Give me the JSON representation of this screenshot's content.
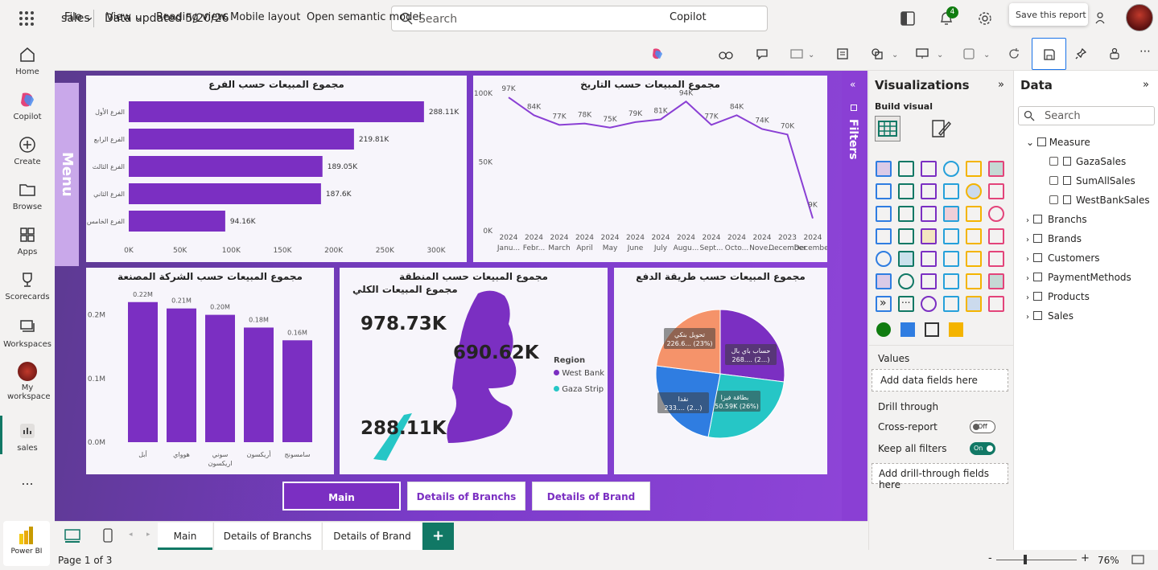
{
  "topbar": {
    "app_name": "sales",
    "data_updated": "Data updated 5/20/26",
    "search_placeholder": "Search",
    "notification_count": "4",
    "tooltip": "Save this report"
  },
  "leftnav": {
    "items": [
      {
        "label": "Home"
      },
      {
        "label": "Copilot"
      },
      {
        "label": "Create"
      },
      {
        "label": "Browse"
      },
      {
        "label": "Apps"
      },
      {
        "label": "Scorecards"
      },
      {
        "label": "Workspaces"
      },
      {
        "label": "My workspace"
      },
      {
        "label": "sales"
      }
    ],
    "more": "...",
    "brand": "Power BI"
  },
  "ribbon": {
    "file": "File",
    "view": "View",
    "reading_view": "Reading view",
    "mobile_layout": "Mobile layout",
    "open_model": "Open semantic model",
    "copilot": "Copilot"
  },
  "report": {
    "menu_label": "Menu",
    "nav_buttons": {
      "main": "Main",
      "branchs": "Details of Branchs",
      "brand": "Details of Brand"
    }
  },
  "chart_data": [
    {
      "type": "bar",
      "title": "مجموع المبيعات حسب الفرع",
      "categories": [
        "الفرع الأول",
        "الفرع الرابع",
        "الفرع الثالث",
        "الفرع الثاني",
        "الفرع الخامس"
      ],
      "values": [
        288.11,
        219.81,
        189.05,
        187.6,
        94.16
      ],
      "data_labels": [
        "288.11K",
        "219.81K",
        "189.05K",
        "187.6K",
        "94.16K"
      ],
      "xticks": [
        "0K",
        "50K",
        "100K",
        "150K",
        "200K",
        "250K",
        "300K"
      ],
      "xlim": [
        0,
        300
      ],
      "orientation": "horizontal",
      "color": "#7b2fc2"
    },
    {
      "type": "line",
      "title": "مجموع المبيعات حسب التاريخ",
      "x_years": [
        "2024",
        "2024",
        "2024",
        "2024",
        "2024",
        "2024",
        "2024",
        "2024",
        "2024",
        "2024",
        "2024",
        "2023",
        "2024"
      ],
      "x_months": [
        "Janu...",
        "Febr...",
        "March",
        "April",
        "May",
        "June",
        "July",
        "Augu...",
        "Sept...",
        "Octo...",
        "Nove...",
        "December",
        "December"
      ],
      "values": [
        97,
        84,
        77,
        78,
        75,
        79,
        81,
        94,
        77,
        84,
        74,
        70,
        9
      ],
      "data_labels": [
        "97K",
        "84K",
        "77K",
        "78K",
        "75K",
        "79K",
        "81K",
        "94K",
        "77K",
        "84K",
        "74K",
        "70K",
        "9K"
      ],
      "yticks": [
        "0K",
        "50K",
        "100K"
      ],
      "ylim": [
        0,
        100
      ],
      "color": "#8a3fd4"
    },
    {
      "type": "bar",
      "title": "مجموع المبيعات حسب الشركة المصنعة",
      "categories": [
        "أبل",
        "هوواي",
        "سوني اريكسون",
        "أريكسون",
        "سامسونج"
      ],
      "values": [
        0.22,
        0.21,
        0.2,
        0.18,
        0.16
      ],
      "data_labels": [
        "0.22M",
        "0.21M",
        "0.20M",
        "0.18M",
        "0.16M"
      ],
      "yticks": [
        "0.0M",
        "0.1M",
        "0.2M"
      ],
      "ylim": [
        0,
        0.25
      ],
      "color": "#7b2fc2"
    },
    {
      "type": "pie",
      "title": "مجموع المبيعات حسب طريقة الدفع",
      "slices": [
        {
          "label": "حساب باي بال",
          "value_label": "268.... (2...)",
          "percent": 27,
          "color": "#7b2fc2"
        },
        {
          "label": "بطاقة فيزا",
          "value_label": "250.59K (26%)",
          "percent": 26,
          "color": "#26c6c6"
        },
        {
          "label": "نقدا",
          "value_label": "233.... (2...)",
          "percent": 24,
          "color": "#2f7de1"
        },
        {
          "label": "تحويل بنكي",
          "value_label": "226.6... (23%)",
          "percent": 23,
          "color": "#f5936a"
        }
      ]
    }
  ],
  "map_card": {
    "title": "مجموع المبيعات حسب المنطقة",
    "total_title": "مجموع المبيعات الكلي",
    "total": "978.73K",
    "west_bank": "690.62K",
    "gaza": "288.11K",
    "legend_title": "Region",
    "legend": [
      {
        "name": "West Bank",
        "color": "#7b2fc2"
      },
      {
        "name": "Gaza Strip",
        "color": "#26c6c6"
      }
    ]
  },
  "filters_label": "Filters",
  "viz": {
    "title": "Visualizations",
    "build_visual": "Build visual",
    "values": "Values",
    "add_fields": "Add data fields here",
    "drill_through": "Drill through",
    "cross_report": "Cross-report",
    "cross_state": "Off",
    "keep_filters": "Keep all filters",
    "keep_state": "On",
    "add_drill": "Add drill-through fields here",
    "more": "..."
  },
  "data": {
    "title": "Data",
    "search": "Search",
    "measure": "Measure",
    "measures": [
      "GazaSales",
      "SumAllSales",
      "WestBankSales"
    ],
    "tables": [
      "Branchs",
      "Brands",
      "Customers",
      "PaymentMethods",
      "Products",
      "Sales"
    ]
  },
  "tabs": {
    "main": "Main",
    "branchs": "Details of Branchs",
    "brand": "Details of Brand",
    "add": "+"
  },
  "status": {
    "page": "Page 1 of 3",
    "zoom": "76%",
    "minus": "-",
    "plus": "+"
  }
}
